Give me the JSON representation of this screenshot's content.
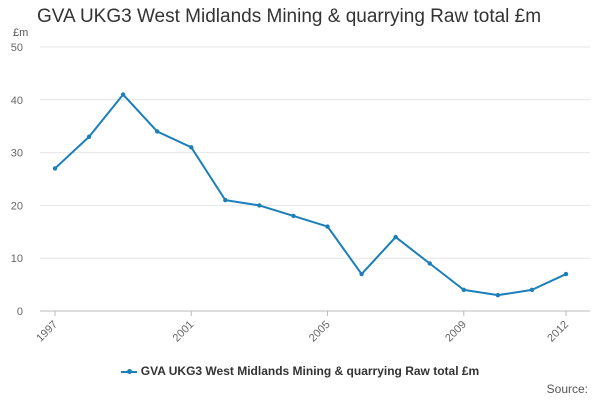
{
  "chart_data": {
    "type": "line",
    "title": "GVA UKG3 West Midlands Mining & quarrying Raw total £m",
    "ylabel": "£m",
    "xlabel": "",
    "ylim": [
      0,
      50
    ],
    "yticks": [
      0,
      10,
      20,
      30,
      40,
      50
    ],
    "xlim": [
      1997,
      2012
    ],
    "xticks": [
      1997,
      2001,
      2005,
      2009,
      2012
    ],
    "x": [
      1997,
      1998,
      1999,
      2000,
      2001,
      2002,
      2003,
      2004,
      2005,
      2006,
      2007,
      2008,
      2009,
      2010,
      2011,
      2012
    ],
    "series": [
      {
        "name": "GVA UKG3 West Midlands Mining & quarrying Raw total £m",
        "color": "#1a7fba",
        "values": [
          27,
          33,
          41,
          34,
          31,
          21,
          20,
          18,
          16,
          7,
          14,
          9,
          4,
          3,
          4,
          7
        ]
      }
    ],
    "grid": true,
    "legend": "bottom-center"
  },
  "footer": {
    "source": "Source:"
  }
}
